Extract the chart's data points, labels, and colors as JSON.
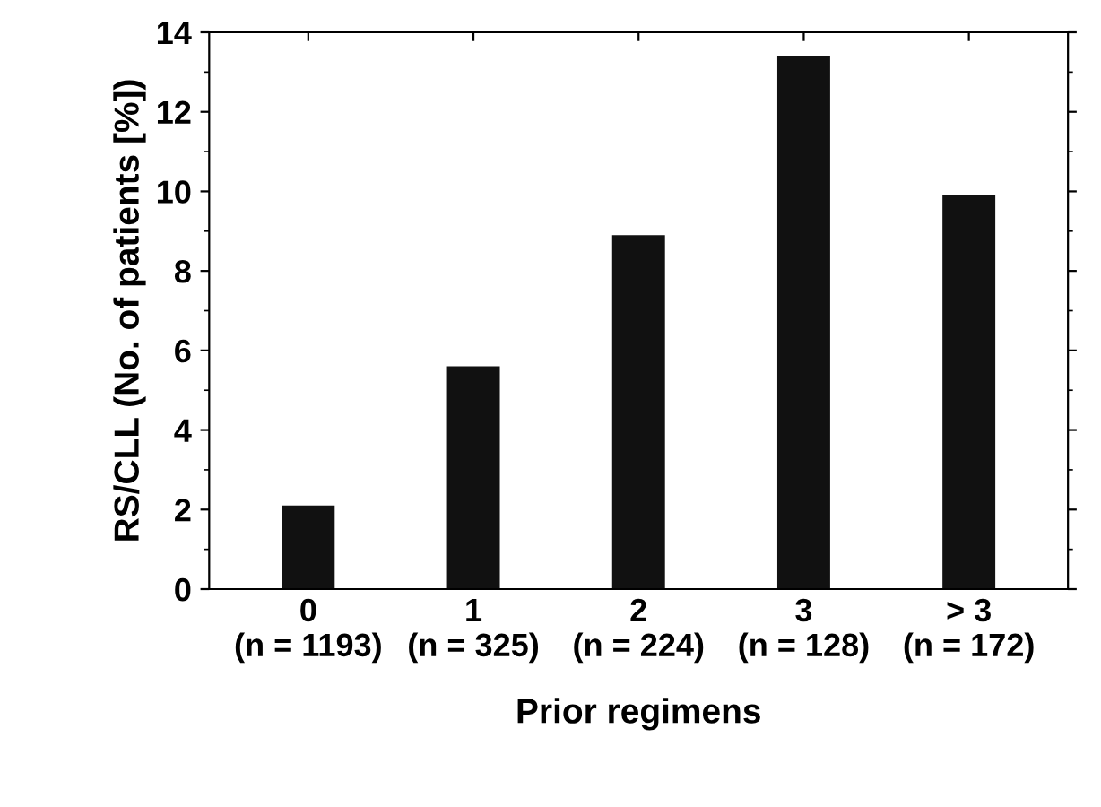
{
  "chart_data": {
    "type": "bar",
    "xlabel": "Prior regimens",
    "ylabel": "RS/CLL (No. of patients [%])",
    "categories": [
      "0\n(n = 1193)",
      "1\n(n = 325)",
      "2\n(n = 224)",
      "3\n(n = 128)",
      "> 3\n(n = 172)"
    ],
    "values": [
      2.1,
      5.6,
      8.9,
      13.4,
      9.9
    ],
    "color": "#111111",
    "ylim": [
      0,
      14
    ],
    "yticks": [
      0,
      2,
      4,
      6,
      8,
      10,
      12,
      14
    ],
    "grid": false
  }
}
